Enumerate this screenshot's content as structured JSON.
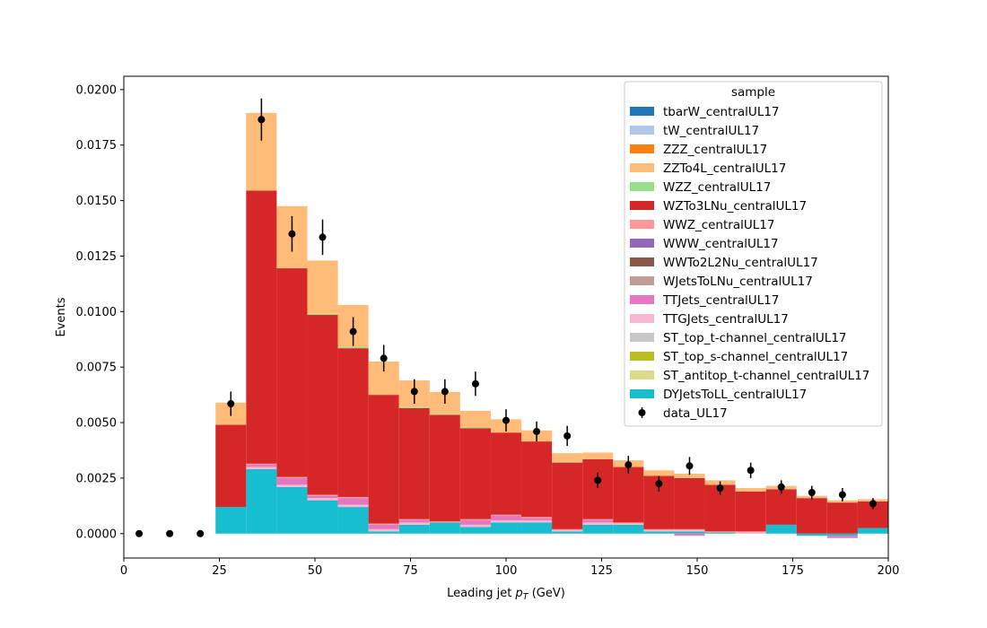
{
  "chart_data": {
    "type": "bar",
    "stacked": true,
    "xlabel": "Leading jet  p_T (GeV)",
    "ylabel": "Events",
    "xlim": [
      0,
      200
    ],
    "ylim": [
      -0.0011,
      0.0206
    ],
    "x_ticks": [
      "0",
      "25",
      "50",
      "75",
      "100",
      "125",
      "150",
      "175",
      "200"
    ],
    "y_ticks": [
      "0.0000",
      "0.0025",
      "0.0050",
      "0.0075",
      "0.0100",
      "0.0125",
      "0.0150",
      "0.0175",
      "0.0200"
    ],
    "legend_title": "sample",
    "legend_position": "upper-right",
    "bin_edges": [
      24,
      32,
      40,
      48,
      56,
      64,
      72,
      80,
      88,
      96,
      104,
      112,
      120,
      128,
      136,
      144,
      152,
      160,
      168,
      176,
      184,
      192,
      200
    ],
    "series": [
      {
        "name": "tbarW_centralUL17",
        "color": "#1f77b4",
        "values": [
          0,
          0,
          0,
          0,
          0,
          0,
          0,
          0,
          0,
          0,
          0,
          0,
          0,
          0,
          0,
          0,
          0,
          0,
          0,
          0,
          0,
          0
        ]
      },
      {
        "name": "tW_centralUL17",
        "color": "#aec7e8",
        "values": [
          0,
          0,
          0,
          0,
          0,
          0,
          0,
          0,
          0,
          0,
          0,
          0,
          0,
          0,
          0,
          0,
          0,
          0,
          0,
          0,
          0,
          0
        ]
      },
      {
        "name": "ZZZ_centralUL17",
        "color": "#ff7f0e",
        "values": [
          0,
          0,
          0,
          0,
          0,
          0,
          0,
          0,
          0,
          0,
          0,
          0,
          0,
          0,
          0,
          0,
          0,
          0,
          0,
          0,
          0,
          0
        ]
      },
      {
        "name": "ZZTo4L_centralUL17",
        "color": "#ffbb78",
        "values": [
          0.001,
          0.0035,
          0.0028,
          0.0024,
          0.0019,
          0.0015,
          0.0012,
          0.001,
          0.00075,
          0.0006,
          0.0005,
          0.0004,
          0.0003,
          0.0003,
          0.00025,
          0.0002,
          0.0002,
          0.00015,
          0.00015,
          0.0001,
          0.0001,
          0.0001
        ]
      },
      {
        "name": "WZZ_centralUL17",
        "color": "#98df8a",
        "values": [
          0,
          0,
          0,
          5e-05,
          5e-05,
          0,
          5e-05,
          3e-05,
          3e-05,
          0,
          0,
          2e-05,
          0,
          0,
          0,
          0,
          0,
          0,
          0,
          0,
          0,
          0
        ]
      },
      {
        "name": "WZTo3LNu_centralUL17",
        "color": "#d62728",
        "values": [
          0.0037,
          0.0123,
          0.0094,
          0.0081,
          0.0067,
          0.0058,
          0.005,
          0.0048,
          0.0041,
          0.0037,
          0.0034,
          0.003,
          0.0027,
          0.0025,
          0.0024,
          0.0023,
          0.0021,
          0.0018,
          0.0016,
          0.0016,
          0.0014,
          0.0012
        ]
      },
      {
        "name": "WWZ_centralUL17",
        "color": "#ff9896",
        "values": [
          0,
          5e-05,
          5e-05,
          5e-05,
          5e-05,
          5e-05,
          5e-05,
          5e-05,
          5e-05,
          5e-05,
          5e-05,
          5e-05,
          5e-05,
          5e-05,
          5e-05,
          5e-05,
          5e-05,
          5e-05,
          0,
          0,
          0,
          0
        ]
      },
      {
        "name": "WWW_centralUL17",
        "color": "#9467bd",
        "values": [
          0,
          0,
          0,
          0,
          0,
          0,
          0,
          0,
          0,
          0,
          0,
          0,
          0,
          0,
          0,
          0,
          0,
          0,
          0,
          0,
          0,
          0
        ]
      },
      {
        "name": "WWTo2L2Nu_centralUL17",
        "color": "#8c564b",
        "values": [
          0,
          0,
          0,
          0,
          0,
          0,
          0,
          0,
          0,
          0,
          0,
          0,
          0,
          0,
          0,
          0,
          0,
          0,
          0,
          0,
          0,
          0
        ]
      },
      {
        "name": "WJetsToLNu_centralUL17",
        "color": "#c49c94",
        "values": [
          0,
          0,
          0,
          0,
          0,
          0,
          0,
          0,
          0,
          0,
          0,
          0,
          0,
          0,
          0,
          0,
          0,
          0,
          0,
          0,
          0,
          0
        ]
      },
      {
        "name": "TTJets_centralUL17",
        "color": "#e377c2",
        "values": [
          0,
          0.0001,
          0.0003,
          0.0001,
          0.0003,
          0.0002,
          0.0001,
          0,
          0.0002,
          0.0002,
          0.0001,
          0,
          0.0001,
          0,
          0,
          -0.0001,
          0,
          0,
          0,
          0,
          -0.0001,
          0
        ]
      },
      {
        "name": "TTGJets_centralUL17",
        "color": "#f7b6d2",
        "values": [
          0,
          0.0001,
          0.0001,
          0.0001,
          0.0001,
          0.0001,
          0.0001,
          0,
          0.0001,
          0.0001,
          0.0001,
          5e-05,
          0.0001,
          5e-05,
          5e-05,
          5e-05,
          0,
          5e-05,
          0,
          0,
          0,
          0
        ]
      },
      {
        "name": "ST_top_t-channel_centralUL17",
        "color": "#c7c7c7",
        "values": [
          0,
          0,
          0,
          0,
          0,
          0,
          0,
          0,
          0,
          0,
          0,
          0,
          0,
          0,
          0,
          0,
          0,
          0,
          0,
          0,
          0,
          0
        ]
      },
      {
        "name": "ST_top_s-channel_centralUL17",
        "color": "#bcbd22",
        "values": [
          0,
          0,
          0,
          0,
          0,
          0,
          0,
          0,
          0,
          0,
          0,
          0,
          0,
          0,
          0,
          0,
          0,
          0,
          0,
          0,
          0,
          0
        ]
      },
      {
        "name": "ST_antitop_t-channel_centralUL17",
        "color": "#dbdb8d",
        "values": [
          0,
          0,
          0,
          0,
          0,
          0,
          0,
          0,
          0,
          0,
          0,
          0,
          0,
          0,
          0,
          0,
          0,
          0,
          0,
          0,
          0,
          0
        ]
      },
      {
        "name": "DYJetsToLL_centralUL17",
        "color": "#17becf",
        "values": [
          0.0012,
          0.0029,
          0.0021,
          0.0015,
          0.0012,
          0.0001,
          0.0004,
          0.0005,
          0.0003,
          0.0005,
          0.0005,
          0.0001,
          0.0004,
          0.0004,
          0.0001,
          0.0001,
          5e-05,
          0,
          0.0004,
          -0.0001,
          -0.0001,
          0.00025
        ]
      }
    ],
    "data": {
      "name": "data_UL17",
      "x": [
        4,
        12,
        20,
        28,
        36,
        44,
        52,
        60,
        68,
        76,
        84,
        92,
        100,
        108,
        116,
        124,
        132,
        140,
        148,
        156,
        164,
        172,
        180,
        188,
        196
      ],
      "y": [
        0,
        0,
        0,
        0.00585,
        0.01865,
        0.0135,
        0.01335,
        0.0091,
        0.0079,
        0.0064,
        0.0064,
        0.00675,
        0.0051,
        0.0046,
        0.0044,
        0.0024,
        0.0031,
        0.00225,
        0.00305,
        0.00205,
        0.00285,
        0.0021,
        0.00185,
        0.00175,
        0.00135
      ],
      "yerr": [
        0,
        0,
        0,
        0.00055,
        0.00095,
        0.0008,
        0.0008,
        0.00065,
        0.0006,
        0.00055,
        0.00055,
        0.00055,
        0.0005,
        0.00045,
        0.00045,
        0.00035,
        0.0004,
        0.00035,
        0.0004,
        0.0003,
        0.00035,
        0.0003,
        0.0003,
        0.0003,
        0.00025
      ]
    }
  }
}
